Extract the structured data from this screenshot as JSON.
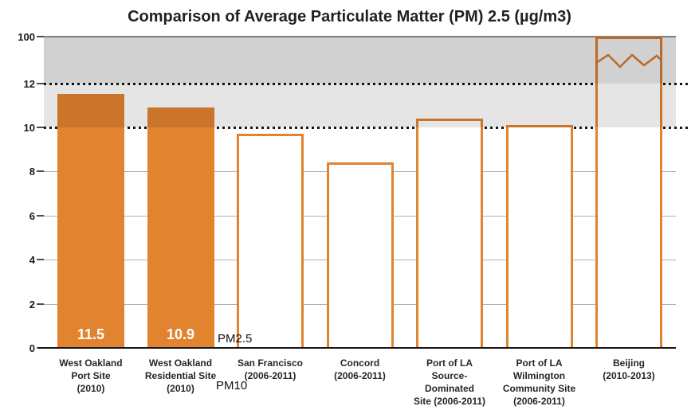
{
  "chart_data": {
    "type": "bar",
    "title": "Comparison of Average Particulate Matter (PM) 2.5 (µg/m3)",
    "xlabel": "",
    "ylabel": "",
    "categories": [
      "West Oakland Port Site (2010)",
      "West Oakland Residential Site (2010)",
      "San Francisco (2006-2011)",
      "Concord (2006-2011)",
      "Port of LA Source-Dominated Site (2006-2011)",
      "Port of LA Wilmington Community Site (2006-2011)",
      "Beijing (2010-2013)"
    ],
    "values": [
      11.5,
      10.9,
      9.7,
      8.4,
      10.4,
      10.1,
      100
    ],
    "bars": [
      {
        "label_lines": [
          "West Oakland",
          "Port Site",
          "(2010)"
        ],
        "value": 11.5,
        "style": "filled",
        "value_label": "11.5"
      },
      {
        "label_lines": [
          "West Oakland",
          "Residential Site",
          "(2010)"
        ],
        "value": 10.9,
        "style": "filled",
        "value_label": "10.9"
      },
      {
        "label_lines": [
          "San Francisco",
          "(2006-2011)"
        ],
        "value": 9.7,
        "style": "outlined"
      },
      {
        "label_lines": [
          "Concord",
          "(2006-2011)"
        ],
        "value": 8.4,
        "style": "outlined"
      },
      {
        "label_lines": [
          "Port of LA",
          "Source-",
          "Dominated",
          "Site (2006-2011)"
        ],
        "value": 10.4,
        "style": "outlined"
      },
      {
        "label_lines": [
          "Port of LA",
          "Wilmington",
          "Community Site",
          "(2006-2011)"
        ],
        "value": 10.1,
        "style": "outlined"
      },
      {
        "label_lines": [
          "Beijing",
          "(2010-2013)"
        ],
        "value": 100,
        "style": "outlined",
        "axis_break": true
      }
    ],
    "y_ticks": [
      {
        "label": "0",
        "value": 0
      },
      {
        "label": "2",
        "value": 2
      },
      {
        "label": "4",
        "value": 4
      },
      {
        "label": "6",
        "value": 6
      },
      {
        "label": "8",
        "value": 8
      },
      {
        "label": "10",
        "value": 10
      },
      {
        "label": "12",
        "value": 12
      },
      {
        "label": "100",
        "value": 100
      }
    ],
    "solid_gridlines_at": [
      2,
      4,
      6,
      8
    ],
    "reference_lines": [
      {
        "value": 10,
        "style": "dotted"
      },
      {
        "value": 12,
        "style": "dotted"
      }
    ],
    "shaded_bands": [
      {
        "from": 10,
        "to": 12,
        "shade": "light"
      },
      {
        "from": 12,
        "to": 100,
        "shade": "dark"
      }
    ],
    "axis_break_note": "Beijing bar drawn to top of scale (100) with zigzag break marks",
    "annotations": [
      {
        "id": "pm25",
        "text": "PM2.5"
      },
      {
        "id": "pm10",
        "text": "PM10"
      }
    ],
    "legend_position": "none",
    "grid": true,
    "colors": {
      "bar_orange": "#E28330",
      "band_dark": "rgba(0,0,0,0.18)",
      "band_light": "rgba(0,0,0,0.10)",
      "gridline": "#b2b2b2",
      "dotted_line": "#161616",
      "value_label_text": "#ffffff"
    }
  }
}
